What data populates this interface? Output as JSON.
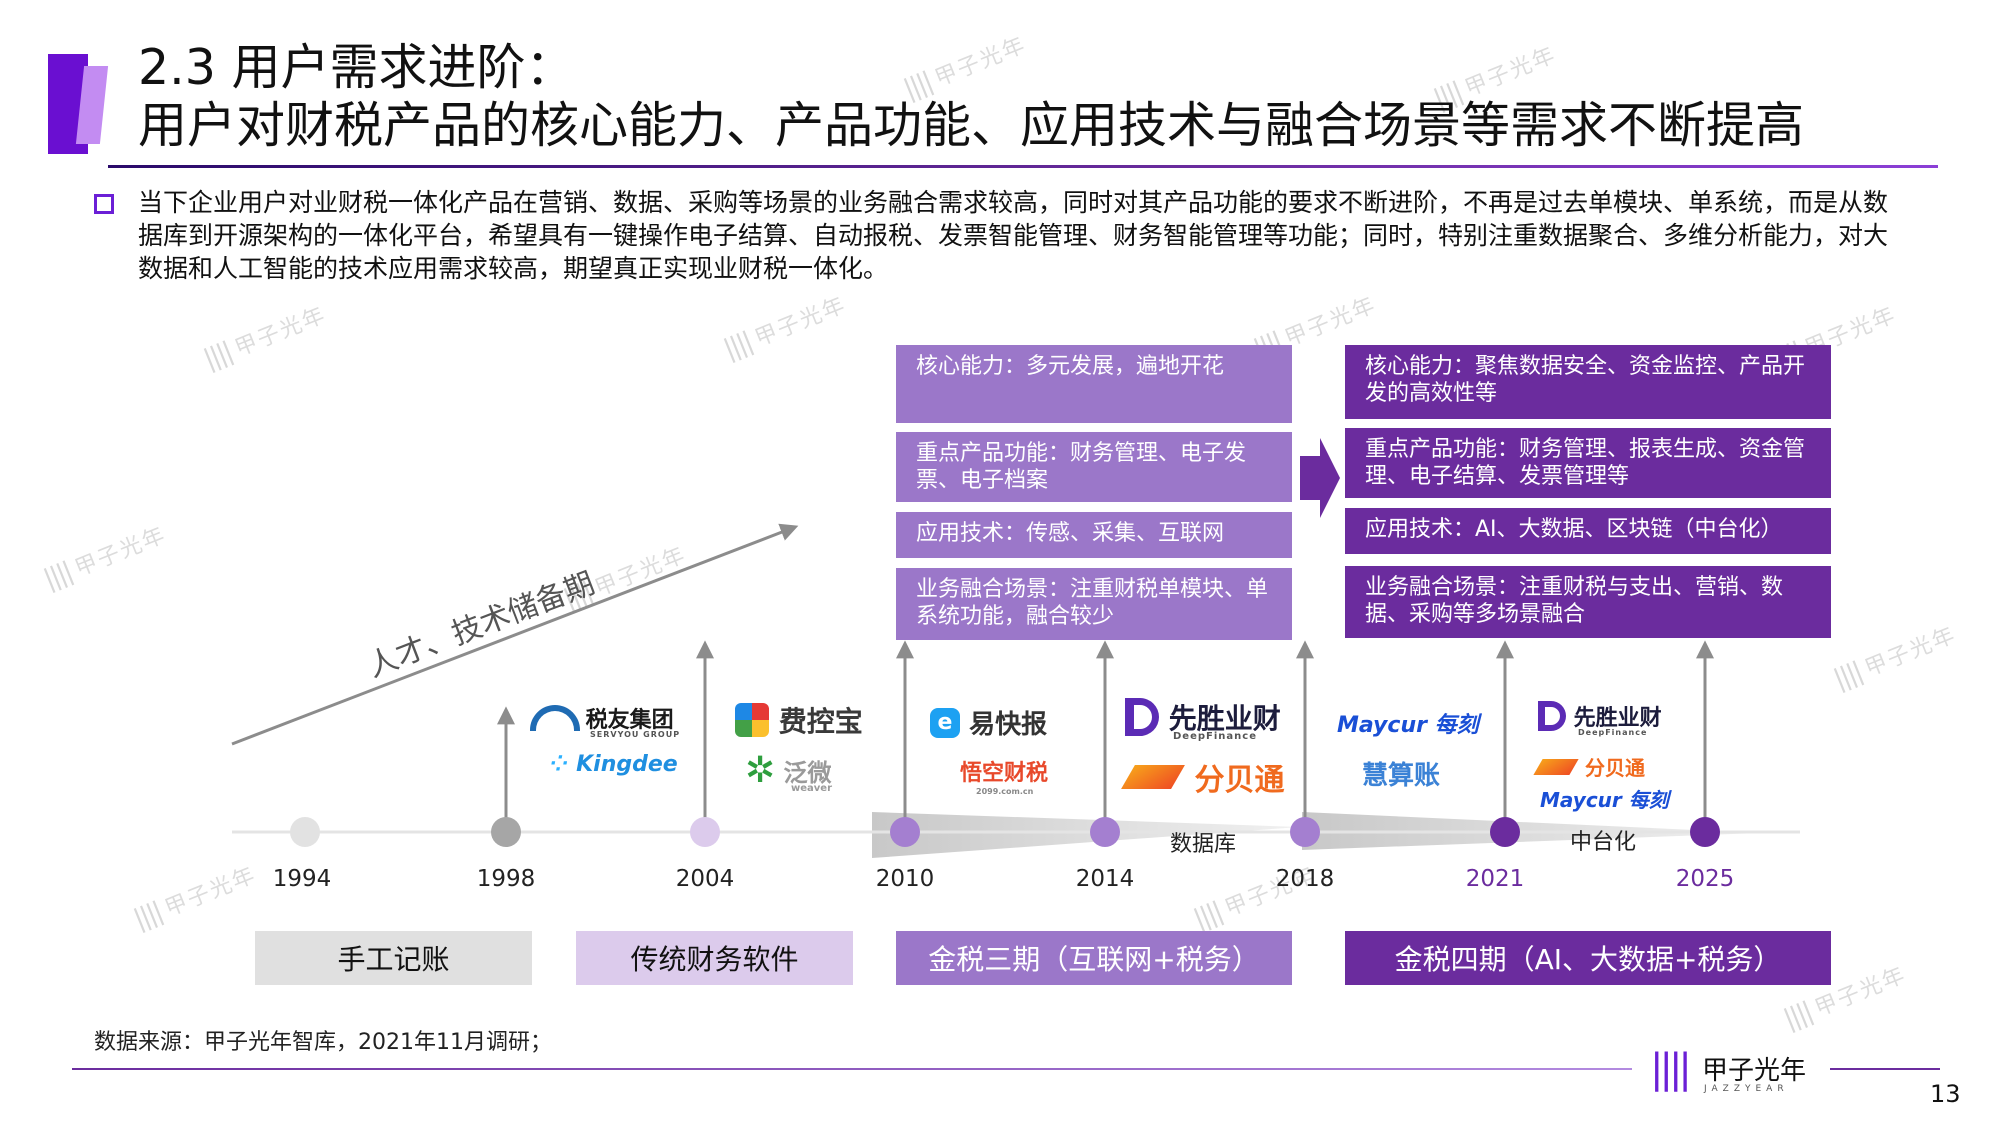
{
  "header": {
    "title_line1": "2.3 用户需求进阶：",
    "title_line2": "用户对财税产品的核心能力、产品功能、应用技术与融合场景等需求不断提高",
    "accent_color": "#7b1fd6"
  },
  "summary": {
    "text": "当下企业用户对业财税一体化产品在营销、数据、采购等场景的业务融合需求较高，同时对其产品功能的要求不断进阶，不再是过去单模块、单系统，而是从数据库到开源架构的一体化平台，希望具有一键操作电子结算、自动报税、发票智能管理、财务智能管理等功能；同时，特别注重数据聚合、多维分析能力，对大数据和人工智能的技术应用需求较高，期望真正实现业财税一体化。"
  },
  "left_group": {
    "core": "核心能力：多元发展，遍地开花",
    "function": "重点产品功能：财务管理、电子发票、电子档案",
    "tech": "应用技术：传感、采集、互联网",
    "scene": "业务融合场景：注重财税单模块、单系统功能，融合较少"
  },
  "right_group": {
    "core": "核心能力：聚焦数据安全、资金监控、产品开发的高效性等",
    "function": "重点产品功能：财务管理、报表生成、资金管理、电子结算、发票管理等",
    "tech": "应用技术：AI、大数据、区块链（中台化）",
    "scene": "业务融合场景：注重财税与支出、营销、数据、采购等多场景融合"
  },
  "arrow_label": "人才、技术储备期",
  "timeline": {
    "years": [
      "1994",
      "1998",
      "2004",
      "2010",
      "2014",
      "2018",
      "2021",
      "2025"
    ],
    "band_label_1": "数据库",
    "band_label_2": "中台化"
  },
  "eras": [
    "手工记账",
    "传统财务软件",
    "金税三期（互联网+税务）",
    "金税四期（AI、大数据+税务）"
  ],
  "logos": {
    "servyou": "税友集团",
    "servyou_sub": "SERVYOU GROUP",
    "kingdee": "Kingdee",
    "feikongbao": "费控宝",
    "fanwei": "泛微",
    "fanwei_sub": "weaver",
    "yikuaibao": "易快报",
    "wukong": "悟空财税",
    "wukong_sub": "2099.com.cn",
    "xiansheng": "先胜业财",
    "xiansheng_sub": "DeepFinance",
    "fenbeitong": "分贝通",
    "maycur": "Maycur",
    "maycur_cn": "每刻",
    "huisuanzhang": "慧算账"
  },
  "footer": {
    "source": "数据来源：甲子光年智库，2021年11月调研；",
    "brand": "甲子光年",
    "brand_sub": "JAZZYEAR",
    "page": "13"
  },
  "watermark": "甲子光年"
}
